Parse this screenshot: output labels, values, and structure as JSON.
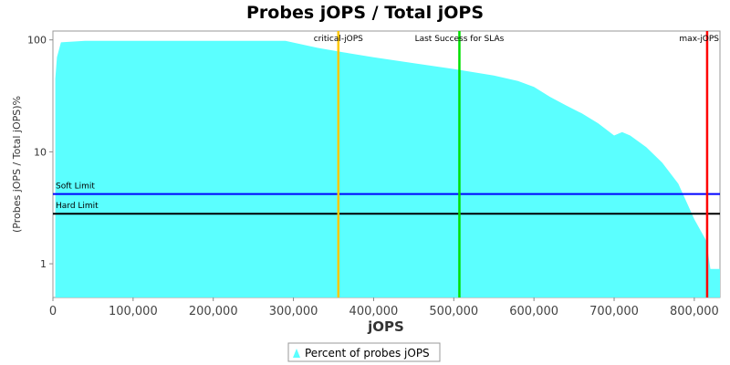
{
  "chart_data": {
    "type": "area",
    "title": "Probes jOPS / Total jOPS",
    "xlabel": "jOPS",
    "ylabel": "(Probes jOPS / Total jOPS)%",
    "xlim": [
      0,
      832000
    ],
    "ylim": [
      0.5,
      120
    ],
    "yscale": "log",
    "grid": false,
    "legend_position": "bottom-center",
    "x_ticks": [
      0,
      100000,
      200000,
      300000,
      400000,
      500000,
      600000,
      700000,
      800000
    ],
    "x_tick_labels": [
      "0",
      "100,000",
      "200,000",
      "300,000",
      "400,000",
      "500,000",
      "600,000",
      "700,000",
      "800,000"
    ],
    "y_ticks": [
      1,
      10,
      100
    ],
    "y_tick_labels": [
      "1",
      "10",
      "100"
    ],
    "series": [
      {
        "name": "Percent of probes jOPS",
        "color": "#5bffff",
        "x": [
          3000,
          5000,
          10000,
          40000,
          100000,
          200000,
          290000,
          330000,
          360000,
          400000,
          450000,
          500000,
          550000,
          580000,
          600000,
          620000,
          640000,
          660000,
          680000,
          700000,
          710000,
          720000,
          740000,
          760000,
          780000,
          800000,
          815000,
          820000,
          825000,
          832000
        ],
        "y": [
          45,
          70,
          95,
          98,
          98,
          98,
          98,
          85,
          78,
          70,
          62,
          55,
          48,
          43,
          38,
          31,
          26,
          22,
          18,
          14,
          15,
          14,
          11,
          8,
          5.2,
          2.5,
          1.6,
          0.9,
          0.9,
          0.9
        ]
      }
    ],
    "vertical_markers": [
      {
        "label": "critical-jOPS",
        "x": 356000,
        "color": "#ffc800"
      },
      {
        "label": "Last Success for SLAs",
        "x": 507000,
        "color": "#00e000"
      },
      {
        "label": "max-jOPS",
        "x": 816000,
        "color": "#ff0000"
      }
    ],
    "horizontal_markers": [
      {
        "label": "Soft Limit",
        "y": 4.2,
        "color": "#0000ff"
      },
      {
        "label": "Hard Limit",
        "y": 2.8,
        "color": "#000000"
      }
    ]
  }
}
